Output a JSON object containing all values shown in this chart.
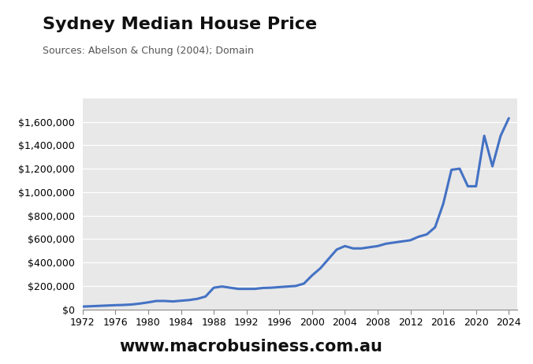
{
  "title": "Sydney Median House Price",
  "subtitle": "Sources: Abelson & Chung (2004); Domain",
  "bg_color": "#e8e8e8",
  "line_color": "#4472c4",
  "line_width": 2.2,
  "years": [
    1972,
    1973,
    1974,
    1975,
    1976,
    1977,
    1978,
    1979,
    1980,
    1981,
    1982,
    1983,
    1984,
    1985,
    1986,
    1987,
    1988,
    1989,
    1990,
    1991,
    1992,
    1993,
    1994,
    1995,
    1996,
    1997,
    1998,
    1999,
    2000,
    2001,
    2002,
    2003,
    2004,
    2005,
    2006,
    2007,
    2008,
    2009,
    2010,
    2011,
    2012,
    2013,
    2014,
    2015,
    2016,
    2017,
    2018,
    2019,
    2020,
    2021,
    2022,
    2023,
    2024
  ],
  "prices": [
    24000,
    27000,
    30000,
    33000,
    36000,
    38000,
    42000,
    50000,
    60000,
    72000,
    72000,
    68000,
    74000,
    80000,
    90000,
    110000,
    185000,
    195000,
    185000,
    175000,
    175000,
    175000,
    183000,
    185000,
    190000,
    195000,
    200000,
    220000,
    290000,
    350000,
    430000,
    510000,
    540000,
    520000,
    520000,
    530000,
    540000,
    560000,
    570000,
    580000,
    590000,
    620000,
    640000,
    700000,
    900000,
    1190000,
    1200000,
    1050000,
    1050000,
    1480000,
    1220000,
    1480000,
    1630000
  ],
  "ylim": [
    0,
    1800000
  ],
  "xlim": [
    1972,
    2025
  ],
  "yticks": [
    0,
    200000,
    400000,
    600000,
    800000,
    1000000,
    1200000,
    1400000,
    1600000
  ],
  "xticks": [
    1972,
    1976,
    1980,
    1984,
    1988,
    1992,
    1996,
    2000,
    2004,
    2008,
    2012,
    2016,
    2020,
    2024
  ],
  "macro_red": "#cc1111",
  "website": "www.macrobusiness.com.au",
  "website_fontsize": 15,
  "fig_bg": "#ffffff"
}
